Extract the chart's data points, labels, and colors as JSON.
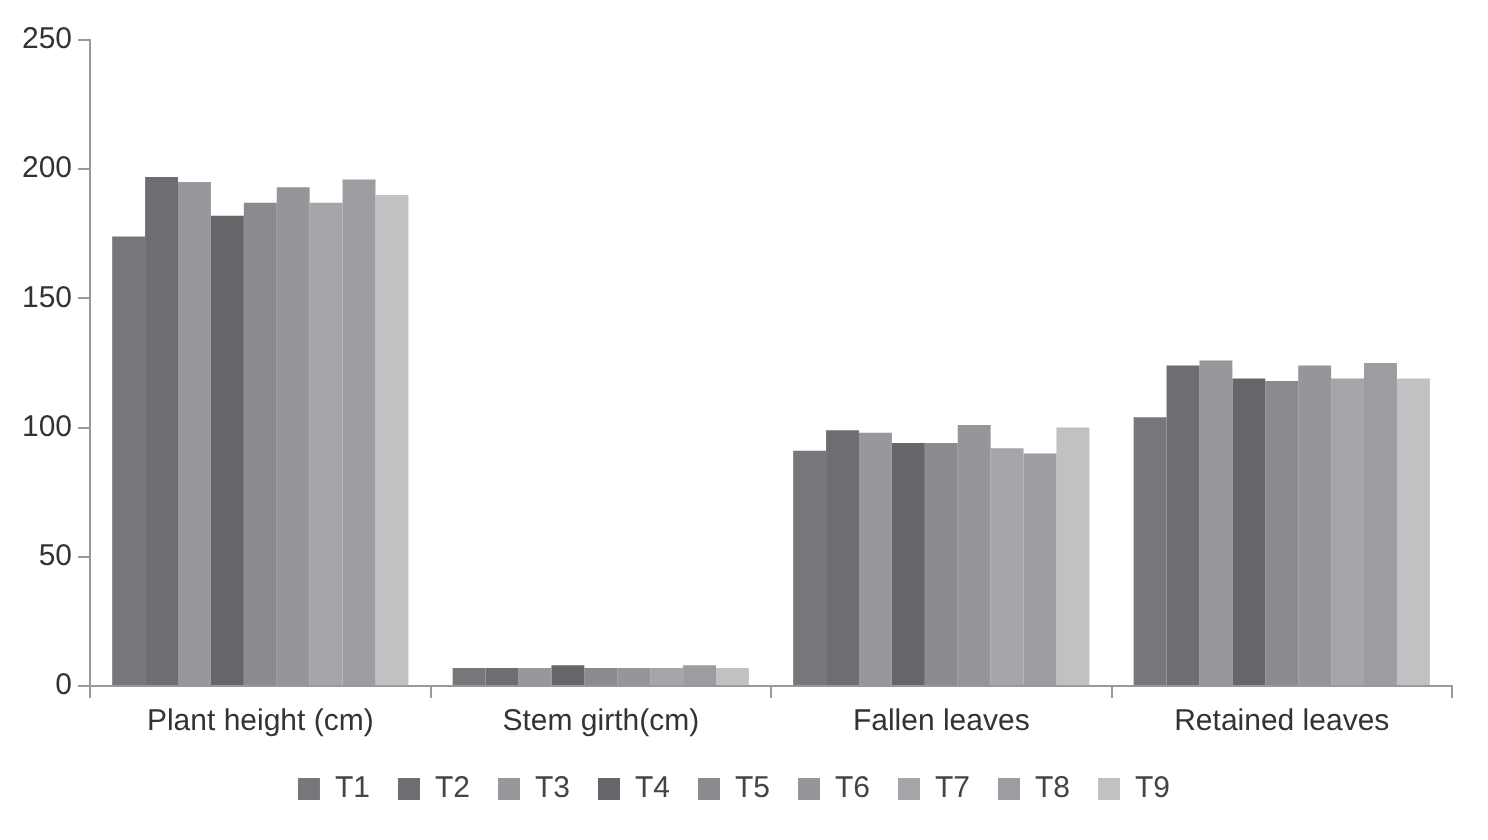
{
  "chart_data": {
    "type": "bar",
    "categories": [
      "Plant height (cm)",
      "Stem girth(cm)",
      "Fallen leaves",
      "Retained leaves"
    ],
    "series": [
      {
        "name": "T1",
        "color": "#76777b",
        "values": [
          174,
          7,
          91,
          104
        ]
      },
      {
        "name": "T2",
        "color": "#6d6e72",
        "values": [
          197,
          7,
          99,
          124
        ]
      },
      {
        "name": "T3",
        "color": "#97989b",
        "values": [
          195,
          7,
          98,
          126
        ]
      },
      {
        "name": "T4",
        "color": "#656669",
        "values": [
          182,
          8,
          94,
          119
        ]
      },
      {
        "name": "T5",
        "color": "#8a8b8e",
        "values": [
          187,
          7,
          94,
          118
        ]
      },
      {
        "name": "T6",
        "color": "#95969a",
        "values": [
          193,
          7,
          101,
          124
        ]
      },
      {
        "name": "T7",
        "color": "#a5a6a9",
        "values": [
          187,
          7,
          92,
          119
        ]
      },
      {
        "name": "T8",
        "color": "#9c9da0",
        "values": [
          196,
          8,
          90,
          125
        ]
      },
      {
        "name": "T9",
        "color": "#c0c1c3",
        "values": [
          190,
          7,
          100,
          119
        ]
      }
    ],
    "ylim": [
      0,
      250
    ],
    "yticks": [
      0,
      50,
      100,
      150,
      200,
      250
    ],
    "grid": false,
    "legend": "bottom"
  }
}
